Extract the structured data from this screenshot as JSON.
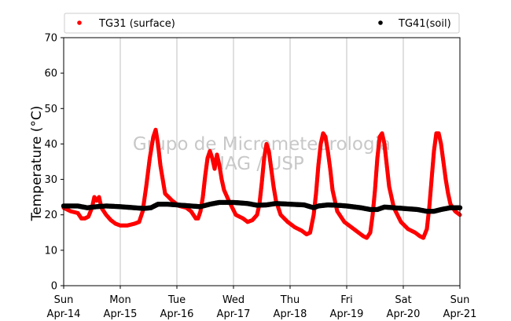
{
  "chart_data": {
    "type": "scatter",
    "ylabel": "Temperature (°C)",
    "ylim": [
      0,
      70
    ],
    "yticks": [
      0,
      10,
      20,
      30,
      40,
      50,
      60,
      70
    ],
    "xlim": [
      "2019-04-14T00:00",
      "2019-04-21T00:00"
    ],
    "xticks": [
      {
        "date": "2019-04-14",
        "day": "Sun",
        "label": "Apr-14"
      },
      {
        "date": "2019-04-15",
        "day": "Mon",
        "label": "Apr-15"
      },
      {
        "date": "2019-04-16",
        "day": "Tue",
        "label": "Apr-16"
      },
      {
        "date": "2019-04-17",
        "day": "Wed",
        "label": "Apr-17"
      },
      {
        "date": "2019-04-18",
        "day": "Thu",
        "label": "Apr-18"
      },
      {
        "date": "2019-04-19",
        "day": "Fri",
        "label": "Apr-19"
      },
      {
        "date": "2019-04-20",
        "day": "Sat",
        "label": "Apr-20"
      },
      {
        "date": "2019-04-21",
        "day": "Sun",
        "label": "Apr-21"
      }
    ],
    "grid": "vertical",
    "legend": "top",
    "watermark": [
      "Grupo de Micrometeorologia",
      "IAG / USP"
    ],
    "series": [
      {
        "name": "TG31 (surface)",
        "color": "#ff0000",
        "x": [
          "2019-04-14T00:00",
          "2019-04-14T03:00",
          "2019-04-14T06:00",
          "2019-04-14T07:30",
          "2019-04-14T09:00",
          "2019-04-14T10:30",
          "2019-04-14T12:00",
          "2019-04-14T13:00",
          "2019-04-14T14:00",
          "2019-04-14T15:00",
          "2019-04-14T16:00",
          "2019-04-14T18:00",
          "2019-04-14T20:00",
          "2019-04-14T22:00",
          "2019-04-15T00:00",
          "2019-04-15T03:00",
          "2019-04-15T06:00",
          "2019-04-15T08:00",
          "2019-04-15T09:30",
          "2019-04-15T11:00",
          "2019-04-15T12:30",
          "2019-04-15T14:00",
          "2019-04-15T15:00",
          "2019-04-15T16:00",
          "2019-04-15T17:00",
          "2019-04-15T19:00",
          "2019-04-15T22:00",
          "2019-04-16T01:00",
          "2019-04-16T04:00",
          "2019-04-16T06:00",
          "2019-04-16T08:00",
          "2019-04-16T09:00",
          "2019-04-16T10:00",
          "2019-04-16T11:00",
          "2019-04-16T12:00",
          "2019-04-16T13:00",
          "2019-04-16T14:00",
          "2019-04-16T15:00",
          "2019-04-16T16:00",
          "2019-04-16T17:00",
          "2019-04-16T18:00",
          "2019-04-16T19:00",
          "2019-04-16T20:00",
          "2019-04-16T22:00",
          "2019-04-17T01:00",
          "2019-04-17T04:00",
          "2019-04-17T06:00",
          "2019-04-17T08:00",
          "2019-04-17T10:00",
          "2019-04-17T11:00",
          "2019-04-17T12:00",
          "2019-04-17T13:00",
          "2019-04-17T14:00",
          "2019-04-17T15:00",
          "2019-04-17T16:00",
          "2019-04-17T17:00",
          "2019-04-17T18:00",
          "2019-04-17T20:00",
          "2019-04-17T23:00",
          "2019-04-18T02:00",
          "2019-04-18T05:00",
          "2019-04-18T07:00",
          "2019-04-18T08:30",
          "2019-04-18T10:00",
          "2019-04-18T11:00",
          "2019-04-18T12:00",
          "2019-04-18T13:00",
          "2019-04-18T14:00",
          "2019-04-18T15:00",
          "2019-04-18T16:00",
          "2019-04-18T17:00",
          "2019-04-18T18:00",
          "2019-04-18T20:00",
          "2019-04-18T23:00",
          "2019-04-19T02:00",
          "2019-04-19T05:00",
          "2019-04-19T07:00",
          "2019-04-19T08:30",
          "2019-04-19T10:00",
          "2019-04-19T11:00",
          "2019-04-19T12:00",
          "2019-04-19T13:00",
          "2019-04-19T14:00",
          "2019-04-19T15:00",
          "2019-04-19T16:00",
          "2019-04-19T17:00",
          "2019-04-19T18:00",
          "2019-04-19T20:00",
          "2019-04-19T23:00",
          "2019-04-20T02:00",
          "2019-04-20T05:00",
          "2019-04-20T07:00",
          "2019-04-20T08:30",
          "2019-04-20T10:00",
          "2019-04-20T11:00",
          "2019-04-20T12:00",
          "2019-04-20T13:00",
          "2019-04-20T14:00",
          "2019-04-20T15:00",
          "2019-04-20T16:00",
          "2019-04-20T17:00",
          "2019-04-20T18:00",
          "2019-04-20T19:00",
          "2019-04-20T20:00",
          "2019-04-20T22:00",
          "2019-04-21T00:00"
        ],
        "y": [
          22,
          21,
          20.5,
          19,
          19,
          19.5,
          22,
          25,
          24,
          25,
          22,
          20,
          18.5,
          17.5,
          17,
          17,
          17.5,
          18,
          21,
          28,
          36,
          42,
          44,
          40,
          34,
          26,
          24,
          22.5,
          22,
          21,
          19,
          19,
          21,
          25,
          31,
          36,
          38,
          36,
          33,
          37,
          34,
          30,
          27,
          24,
          20,
          19,
          18,
          18.5,
          20,
          23,
          29,
          36,
          40,
          38,
          33,
          28,
          24,
          20,
          18,
          16.5,
          15.5,
          14.5,
          15,
          20,
          26,
          34,
          40,
          43,
          42,
          38,
          33,
          27,
          21,
          18,
          16.5,
          15,
          14,
          13.5,
          15,
          20,
          27,
          36,
          42,
          43,
          40,
          34,
          28,
          22,
          18,
          16,
          15,
          14,
          13.5,
          16,
          22,
          30,
          38,
          43,
          43,
          40,
          35,
          30,
          26,
          23,
          21,
          20
        ]
      },
      {
        "name": "TG41(soil)",
        "color": "#000000",
        "x": [
          "2019-04-14T00:00",
          "2019-04-14T06:00",
          "2019-04-14T10:00",
          "2019-04-14T14:00",
          "2019-04-14T18:00",
          "2019-04-15T00:00",
          "2019-04-15T06:00",
          "2019-04-15T10:00",
          "2019-04-15T13:00",
          "2019-04-15T16:00",
          "2019-04-15T20:00",
          "2019-04-16T00:00",
          "2019-04-16T06:00",
          "2019-04-16T10:00",
          "2019-04-16T14:00",
          "2019-04-16T18:00",
          "2019-04-17T00:00",
          "2019-04-17T06:00",
          "2019-04-17T10:00",
          "2019-04-17T14:00",
          "2019-04-17T18:00",
          "2019-04-18T00:00",
          "2019-04-18T06:00",
          "2019-04-18T10:00",
          "2019-04-18T12:00",
          "2019-04-18T16:00",
          "2019-04-18T20:00",
          "2019-04-19T00:00",
          "2019-04-19T06:00",
          "2019-04-19T10:00",
          "2019-04-19T13:00",
          "2019-04-19T16:00",
          "2019-04-19T20:00",
          "2019-04-20T00:00",
          "2019-04-20T06:00",
          "2019-04-20T10:00",
          "2019-04-20T13:00",
          "2019-04-20T16:00",
          "2019-04-20T20:00",
          "2019-04-21T00:00"
        ],
        "y": [
          22.5,
          22.5,
          22,
          22.3,
          22.5,
          22.3,
          22,
          21.8,
          22,
          23,
          23,
          22.8,
          22.5,
          22.3,
          23,
          23.5,
          23.5,
          23.2,
          22.7,
          22.8,
          23.2,
          23,
          22.8,
          22,
          22.5,
          22.8,
          22.7,
          22.5,
          22,
          21.5,
          21.5,
          22.2,
          22,
          21.8,
          21.5,
          21,
          21,
          21.5,
          22,
          22
        ]
      }
    ]
  }
}
